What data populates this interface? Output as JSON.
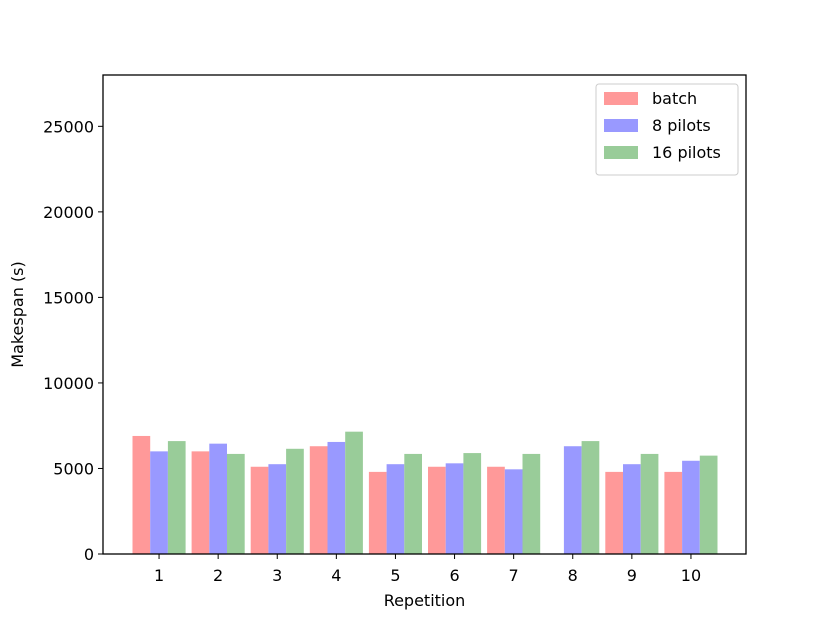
{
  "chart_data": {
    "type": "bar",
    "title": "",
    "xlabel": "Repetition",
    "ylabel": "Makespan (s)",
    "categories": [
      "1",
      "2",
      "3",
      "4",
      "5",
      "6",
      "7",
      "8",
      "9",
      "10"
    ],
    "ylim": [
      0,
      28000
    ],
    "yticks": [
      0,
      5000,
      10000,
      15000,
      20000,
      25000
    ],
    "grid": false,
    "legend_position": "top-right",
    "series": [
      {
        "name": "batch",
        "color": "#ff9999",
        "values": [
          6900,
          6000,
          5100,
          6300,
          4800,
          5100,
          5100,
          null,
          4800,
          4800
        ]
      },
      {
        "name": "8 pilots",
        "color": "#9999ff",
        "values": [
          6000,
          6450,
          5250,
          6550,
          5250,
          5300,
          4950,
          6300,
          5250,
          5450
        ]
      },
      {
        "name": "16 pilots",
        "color": "#99cc99",
        "values": [
          6600,
          5850,
          6150,
          7150,
          5850,
          5900,
          5850,
          6600,
          5850,
          5750
        ]
      }
    ]
  }
}
